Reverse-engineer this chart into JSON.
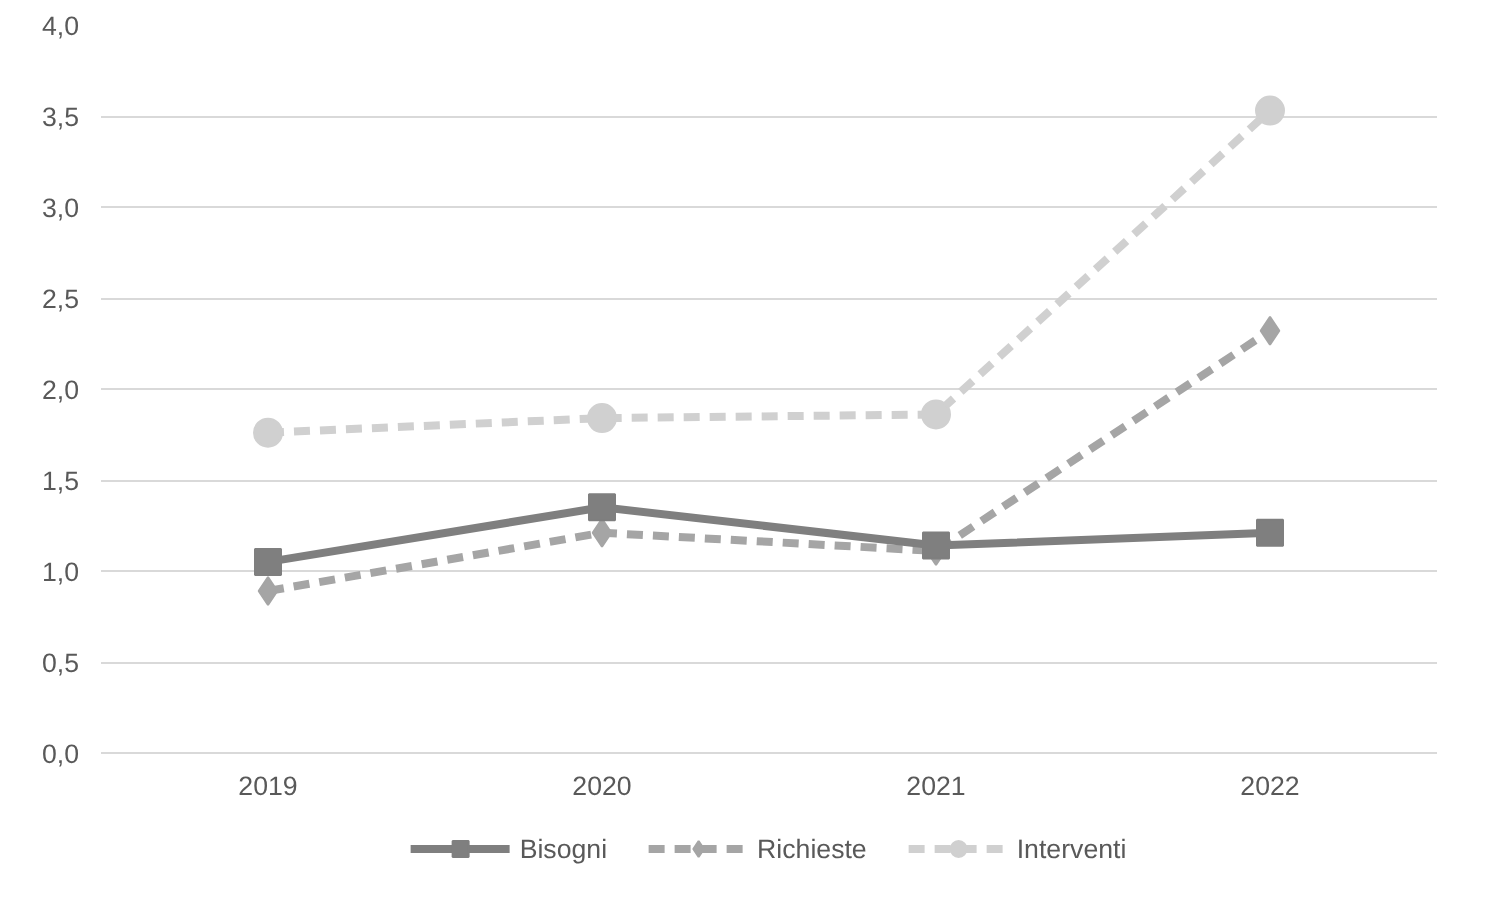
{
  "chart_data": {
    "type": "line",
    "categories": [
      "2019",
      "2020",
      "2021",
      "2022"
    ],
    "series": [
      {
        "name": "Bisogni",
        "color": "#7f7f7f",
        "values": [
          1.05,
          1.35,
          1.14,
          1.21
        ],
        "marker": "square",
        "line_style": "solid"
      },
      {
        "name": "Richieste",
        "color": "#a5a5a5",
        "values": [
          0.89,
          1.21,
          1.11,
          2.32
        ],
        "marker": "diamond",
        "line_style": "dashed"
      },
      {
        "name": "Interventi",
        "color": "#d0d0d0",
        "values": [
          1.76,
          1.84,
          1.86,
          3.53
        ],
        "marker": "circle",
        "line_style": "dashed"
      }
    ],
    "ylim": [
      0,
      4
    ],
    "yticks": [
      {
        "value": 0,
        "label": "0,0"
      },
      {
        "value": 0.5,
        "label": "0,5"
      },
      {
        "value": 1,
        "label": "1,0"
      },
      {
        "value": 1.5,
        "label": "1,5"
      },
      {
        "value": 2,
        "label": "2,0"
      },
      {
        "value": 2.5,
        "label": "2,5"
      },
      {
        "value": 3,
        "label": "3,0"
      },
      {
        "value": 3.5,
        "label": "3,5"
      },
      {
        "value": 4,
        "label": "4,0"
      }
    ],
    "grid": "y",
    "legend": "bottom"
  }
}
